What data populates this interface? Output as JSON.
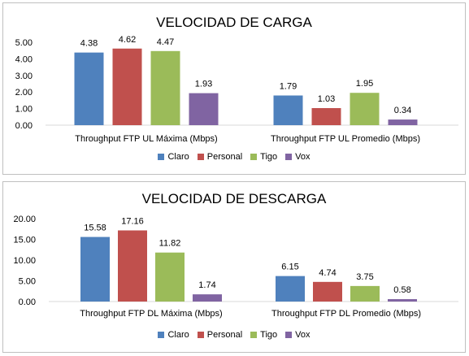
{
  "chart_data": [
    {
      "type": "bar",
      "title": "VELOCIDAD DE CARGA",
      "categories": [
        "Throughput FTP UL Máxima (Mbps)",
        "Throughput FTP UL Promedio (Mbps)"
      ],
      "series": [
        {
          "name": "Claro",
          "values": [
            4.38,
            1.79
          ],
          "labels": [
            "4.38",
            "1.79"
          ],
          "color": "#4f81bd"
        },
        {
          "name": "Personal",
          "values": [
            4.62,
            1.03
          ],
          "labels": [
            "4.62",
            "1.03"
          ],
          "color": "#c0504d"
        },
        {
          "name": "Tigo",
          "values": [
            4.47,
            1.95
          ],
          "labels": [
            "4.47",
            "1.95"
          ],
          "color": "#9bbb59"
        },
        {
          "name": "Vox",
          "values": [
            1.93,
            0.34
          ],
          "labels": [
            "1.93",
            "0.34"
          ],
          "color": "#8064a2"
        }
      ],
      "yticks": [
        "0.00",
        "1.00",
        "2.00",
        "3.00",
        "4.00",
        "5.00"
      ],
      "ylim": [
        0,
        5
      ],
      "grid": false,
      "legend": "bottom"
    },
    {
      "type": "bar",
      "title": "VELOCIDAD DE DESCARGA",
      "categories": [
        "Throughput FTP DL Máxima (Mbps)",
        "Throughput FTP DL Promedio (Mbps)"
      ],
      "series": [
        {
          "name": "Claro",
          "values": [
            15.58,
            6.15
          ],
          "labels": [
            "15.58",
            "6.15"
          ],
          "color": "#4f81bd"
        },
        {
          "name": "Personal",
          "values": [
            17.16,
            4.74
          ],
          "labels": [
            "17.16",
            "4.74"
          ],
          "color": "#c0504d"
        },
        {
          "name": "Tigo",
          "values": [
            11.82,
            3.75
          ],
          "labels": [
            "11.82",
            "3.75"
          ],
          "color": "#9bbb59"
        },
        {
          "name": "Vox",
          "values": [
            1.74,
            0.58
          ],
          "labels": [
            "1.74",
            "0.58"
          ],
          "color": "#8064a2"
        }
      ],
      "yticks": [
        "0.00",
        "5.00",
        "10.00",
        "15.00",
        "20.00"
      ],
      "ylim": [
        0,
        20
      ],
      "grid": false,
      "legend": "bottom"
    }
  ]
}
